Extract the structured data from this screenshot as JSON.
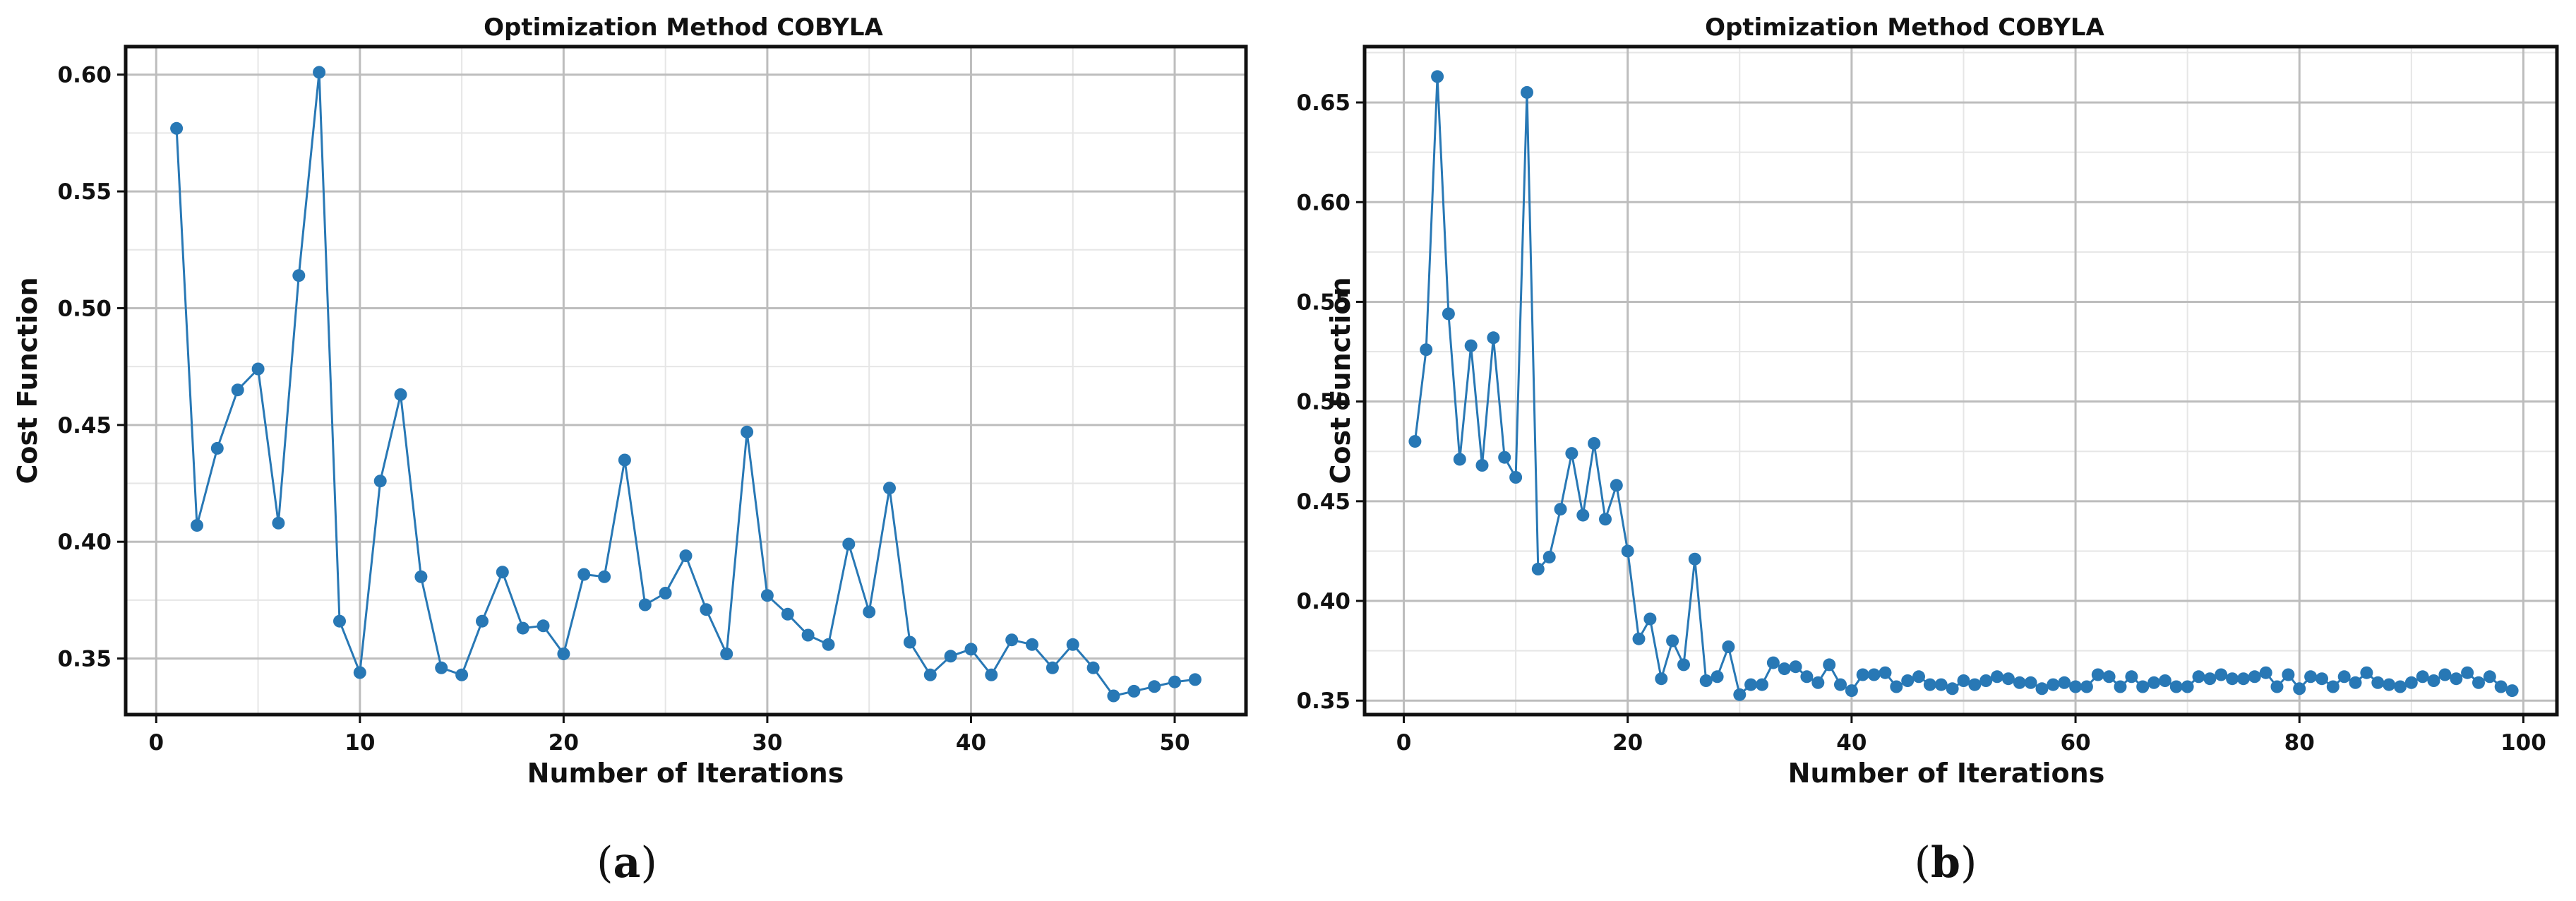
{
  "figure": {
    "subcaptions": [
      {
        "open": "(",
        "letter": "a",
        "close": ")"
      },
      {
        "open": "(",
        "letter": "b",
        "close": ")"
      }
    ]
  },
  "chart_data": [
    {
      "type": "line",
      "title": "Optimization Method COBYLA",
      "xlabel": "Number of Iterations",
      "ylabel": "Cost Function",
      "xlim": [
        -1.5,
        53.5
      ],
      "ylim": [
        0.326,
        0.612
      ],
      "xticks": [
        0,
        10,
        20,
        30,
        40,
        50
      ],
      "yticks": [
        0.35,
        0.4,
        0.45,
        0.5,
        0.55,
        0.6
      ],
      "ytick_labels": [
        "0.35",
        "0.40",
        "0.45",
        "0.50",
        "0.55",
        "0.60"
      ],
      "grid": true,
      "marker": "circle",
      "color": "#2878b5",
      "x": [
        1,
        2,
        3,
        4,
        5,
        6,
        7,
        8,
        9,
        10,
        11,
        12,
        13,
        14,
        15,
        16,
        17,
        18,
        19,
        20,
        21,
        22,
        23,
        24,
        25,
        26,
        27,
        28,
        29,
        30,
        31,
        32,
        33,
        34,
        35,
        36,
        37,
        38,
        39,
        40,
        41,
        42,
        43,
        44,
        45,
        46,
        47,
        48,
        49,
        50,
        51
      ],
      "y": [
        0.577,
        0.407,
        0.44,
        0.465,
        0.474,
        0.408,
        0.514,
        0.601,
        0.366,
        0.344,
        0.426,
        0.463,
        0.385,
        0.346,
        0.343,
        0.366,
        0.387,
        0.363,
        0.364,
        0.352,
        0.386,
        0.385,
        0.435,
        0.373,
        0.378,
        0.394,
        0.371,
        0.352,
        0.447,
        0.377,
        0.369,
        0.36,
        0.356,
        0.399,
        0.37,
        0.423,
        0.357,
        0.343,
        0.351,
        0.354,
        0.343,
        0.358,
        0.356,
        0.346,
        0.356,
        0.346,
        0.334,
        0.336,
        0.338,
        0.34,
        0.341
      ]
    },
    {
      "type": "line",
      "title": "Optimization Method COBYLA",
      "xlabel": "Number of Iterations",
      "ylabel": "Cost Function",
      "xlim": [
        -3.5,
        103
      ],
      "ylim": [
        0.343,
        0.678
      ],
      "xticks": [
        0,
        20,
        40,
        60,
        80,
        100
      ],
      "yticks": [
        0.35,
        0.4,
        0.45,
        0.5,
        0.55,
        0.6,
        0.65
      ],
      "ytick_labels": [
        "0.35",
        "0.40",
        "0.45",
        "0.50",
        "0.55",
        "0.60",
        "0.65"
      ],
      "grid": true,
      "marker": "circle",
      "color": "#2878b5",
      "x": [
        1,
        2,
        3,
        4,
        5,
        6,
        7,
        8,
        9,
        10,
        11,
        12,
        13,
        14,
        15,
        16,
        17,
        18,
        19,
        20,
        21,
        22,
        23,
        24,
        25,
        26,
        27,
        28,
        29,
        30,
        31,
        32,
        33,
        34,
        35,
        36,
        37,
        38,
        39,
        40,
        41,
        42,
        43,
        44,
        45,
        46,
        47,
        48,
        49,
        50,
        51,
        52,
        53,
        54,
        55,
        56,
        57,
        58,
        59,
        60,
        61,
        62,
        63,
        64,
        65,
        66,
        67,
        68,
        69,
        70,
        71,
        72,
        73,
        74,
        75,
        76,
        77,
        78,
        79,
        80,
        81,
        82,
        83,
        84,
        85,
        86,
        87,
        88,
        89,
        90,
        91,
        92,
        93,
        94,
        95,
        96,
        97,
        98,
        99
      ],
      "y": [
        0.48,
        0.526,
        0.663,
        0.544,
        0.471,
        0.528,
        0.468,
        0.532,
        0.472,
        0.462,
        0.655,
        0.416,
        0.422,
        0.446,
        0.474,
        0.443,
        0.479,
        0.441,
        0.458,
        0.425,
        0.381,
        0.391,
        0.361,
        0.38,
        0.368,
        0.421,
        0.36,
        0.362,
        0.377,
        0.353,
        0.358,
        0.358,
        0.369,
        0.366,
        0.367,
        0.362,
        0.359,
        0.368,
        0.358,
        0.355,
        0.363,
        0.363,
        0.364,
        0.357,
        0.36,
        0.362,
        0.358,
        0.358,
        0.356,
        0.36,
        0.358,
        0.36,
        0.362,
        0.361,
        0.359,
        0.359,
        0.356,
        0.358,
        0.359,
        0.357,
        0.357,
        0.363,
        0.362,
        0.357,
        0.362,
        0.357,
        0.359,
        0.36,
        0.357,
        0.357,
        0.362,
        0.361,
        0.363,
        0.361,
        0.361,
        0.362,
        0.364,
        0.357,
        0.363,
        0.356,
        0.362,
        0.361,
        0.357,
        0.362,
        0.359,
        0.364,
        0.359,
        0.358,
        0.357,
        0.359,
        0.362,
        0.36,
        0.363,
        0.361,
        0.364,
        0.359,
        0.362,
        0.357,
        0.355
      ]
    }
  ]
}
